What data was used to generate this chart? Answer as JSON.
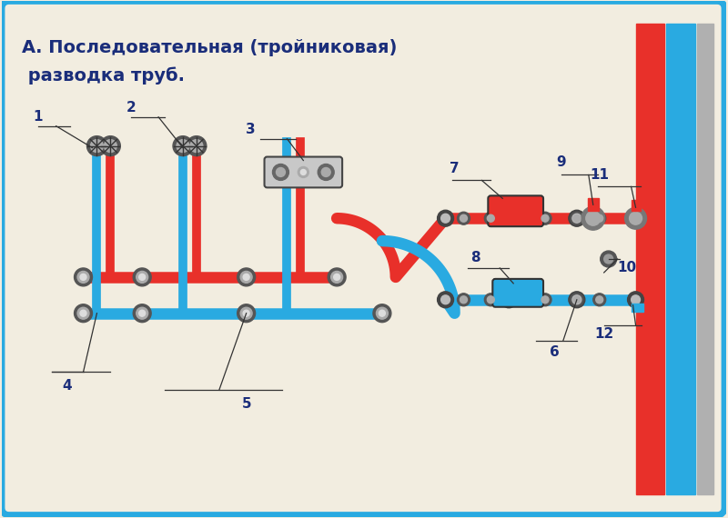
{
  "title_line1": "А. Последовательная (тройниковая)",
  "title_line2": " разводка труб.",
  "bg_color": "#f2ede0",
  "border_color": "#29aae1",
  "pipe_red": "#e8302a",
  "pipe_blue": "#29aae1",
  "fitting_dark": "#555555",
  "fitting_mid": "#888888",
  "fitting_light": "#cccccc",
  "title_color": "#1a2d7a",
  "label_color": "#1a2d7a",
  "wall_red": "#e8302a",
  "wall_blue": "#29aae1",
  "wall_gray": "#b0b0b0"
}
